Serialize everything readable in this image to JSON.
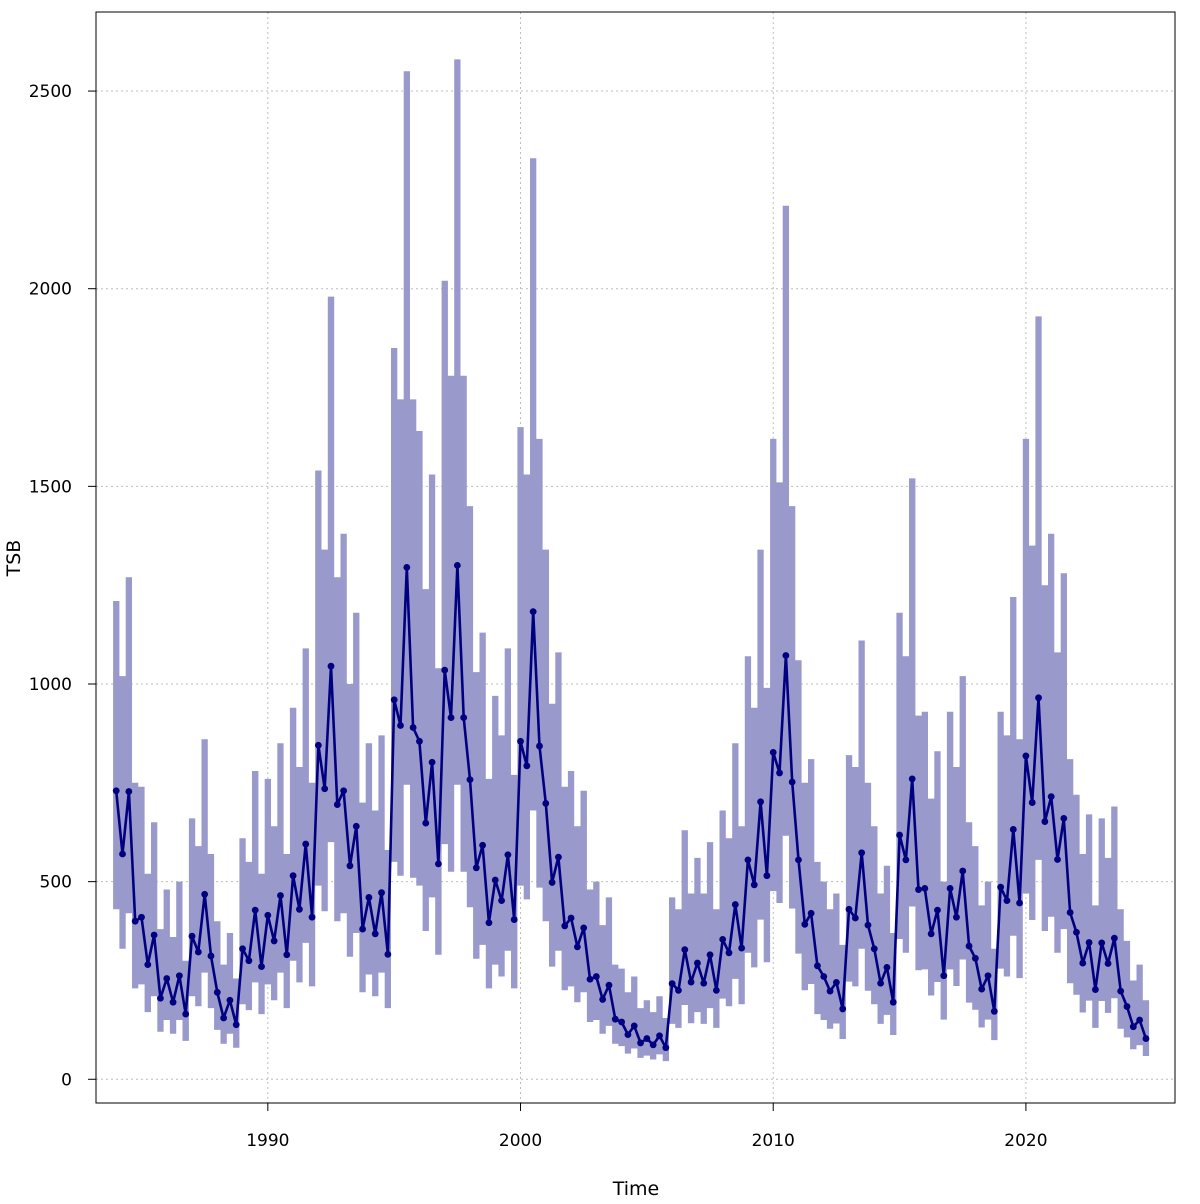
{
  "chart_data": {
    "type": "line",
    "title": "",
    "xlabel": "Time",
    "ylabel": "TSB",
    "xlim": [
      1983.2,
      2025.9
    ],
    "ylim": [
      -60,
      2700
    ],
    "x_ticks": [
      1990,
      2000,
      2010,
      2020
    ],
    "y_ticks": [
      0,
      500,
      1000,
      1500,
      2000,
      2500
    ],
    "grid": true,
    "legend": "none",
    "colors": {
      "line": "#000080",
      "band": "#9999cc",
      "grid": "#bdbdbd",
      "axis": "#000000"
    },
    "series": [
      {
        "x": [
          1984.0,
          1984.25,
          1984.5,
          1984.75,
          1985.0,
          1985.25,
          1985.5,
          1985.75,
          1986.0,
          1986.25,
          1986.5,
          1986.75,
          1987.0,
          1987.25,
          1987.5,
          1987.75,
          1988.0,
          1988.25,
          1988.5,
          1988.75,
          1989.0,
          1989.25,
          1989.5,
          1989.75,
          1990.0,
          1990.25,
          1990.5,
          1990.75,
          1991.0,
          1991.25,
          1991.5,
          1991.75,
          1992.0,
          1992.25,
          1992.5,
          1992.75,
          1993.0,
          1993.25,
          1993.5,
          1993.75,
          1994.0,
          1994.25,
          1994.5,
          1994.75,
          1995.0,
          1995.25,
          1995.5,
          1995.75,
          1996.0,
          1996.25,
          1996.5,
          1996.75,
          1997.0,
          1997.25,
          1997.5,
          1997.75,
          1998.0,
          1998.25,
          1998.5,
          1998.75,
          1999.0,
          1999.25,
          1999.5,
          1999.75,
          2000.0,
          2000.25,
          2000.5,
          2000.75,
          2001.0,
          2001.25,
          2001.5,
          2001.75,
          2002.0,
          2002.25,
          2002.5,
          2002.75,
          2003.0,
          2003.25,
          2003.5,
          2003.75,
          2004.0,
          2004.25,
          2004.5,
          2004.75,
          2005.0,
          2005.25,
          2005.5,
          2005.75,
          2006.0,
          2006.25,
          2006.5,
          2006.75,
          2007.0,
          2007.25,
          2007.5,
          2007.75,
          2008.0,
          2008.25,
          2008.5,
          2008.75,
          2009.0,
          2009.25,
          2009.5,
          2009.75,
          2010.0,
          2010.25,
          2010.5,
          2010.75,
          2011.0,
          2011.25,
          2011.5,
          2011.75,
          2012.0,
          2012.25,
          2012.5,
          2012.75,
          2013.0,
          2013.25,
          2013.5,
          2013.75,
          2014.0,
          2014.25,
          2014.5,
          2014.75,
          2015.0,
          2015.25,
          2015.5,
          2015.75,
          2016.0,
          2016.25,
          2016.5,
          2016.75,
          2017.0,
          2017.25,
          2017.5,
          2017.75,
          2018.0,
          2018.25,
          2018.5,
          2018.75,
          2019.0,
          2019.25,
          2019.5,
          2019.75,
          2020.0,
          2020.25,
          2020.5,
          2020.75,
          2021.0,
          2021.25,
          2021.5,
          2021.75,
          2022.0,
          2022.25,
          2022.5,
          2022.75,
          2023.0,
          2023.25,
          2023.5,
          2023.75,
          2024.0,
          2024.25,
          2024.5,
          2024.75
        ],
        "values": [
          730,
          570,
          728,
          400,
          410,
          290,
          365,
          205,
          255,
          195,
          262,
          165,
          362,
          322,
          468,
          312,
          220,
          155,
          200,
          138,
          330,
          300,
          428,
          285,
          415,
          350,
          465,
          315,
          515,
          430,
          595,
          410,
          845,
          735,
          1045,
          695,
          730,
          540,
          640,
          380,
          460,
          368,
          472,
          316,
          960,
          895,
          1295,
          890,
          855,
          648,
          802,
          545,
          1035,
          915,
          1300,
          915,
          758,
          535,
          592,
          396,
          504,
          452,
          568,
          404,
          855,
          793,
          1183,
          843,
          698,
          498,
          562,
          388,
          408,
          335,
          383,
          253,
          260,
          202,
          238,
          152,
          145,
          113,
          135,
          92,
          103,
          87,
          110,
          80,
          242,
          225,
          328,
          246,
          294,
          243,
          315,
          225,
          354,
          320,
          442,
          332,
          555,
          492,
          702,
          515,
          827,
          775,
          1072,
          752,
          555,
          392,
          420,
          287,
          260,
          223,
          245,
          178,
          430,
          408,
          573,
          390,
          330,
          243,
          283,
          195,
          618,
          555,
          760,
          480,
          483,
          368,
          428,
          262,
          483,
          410,
          527,
          337,
          306,
          228,
          262,
          172,
          486,
          452,
          632,
          446,
          818,
          700,
          965,
          652,
          715,
          556,
          660,
          422,
          372,
          294,
          346,
          227,
          345,
          293,
          357,
          223,
          184,
          133,
          150,
          103
        ]
      }
    ],
    "band": {
      "upper": [
        1210,
        1020,
        1270,
        750,
        740,
        520,
        650,
        380,
        480,
        360,
        500,
        300,
        660,
        590,
        860,
        570,
        400,
        290,
        370,
        255,
        610,
        550,
        780,
        520,
        760,
        640,
        850,
        570,
        940,
        790,
        1090,
        750,
        1540,
        1340,
        1980,
        1270,
        1380,
        1000,
        1180,
        700,
        850,
        680,
        870,
        580,
        1850,
        1720,
        2550,
        1720,
        1640,
        1240,
        1530,
        1040,
        2020,
        1780,
        2580,
        1780,
        1450,
        1030,
        1130,
        760,
        970,
        870,
        1090,
        770,
        1650,
        1530,
        2330,
        1620,
        1340,
        950,
        1080,
        740,
        780,
        640,
        730,
        480,
        500,
        390,
        460,
        290,
        280,
        220,
        260,
        180,
        200,
        170,
        210,
        155,
        460,
        430,
        630,
        470,
        560,
        470,
        600,
        430,
        680,
        610,
        850,
        640,
        1070,
        940,
        1340,
        990,
        1620,
        1510,
        2210,
        1450,
        1060,
        750,
        810,
        550,
        500,
        430,
        470,
        340,
        820,
        790,
        1110,
        750,
        640,
        470,
        540,
        370,
        1180,
        1070,
        1520,
        920,
        930,
        710,
        830,
        500,
        930,
        790,
        1020,
        650,
        590,
        440,
        500,
        330,
        930,
        870,
        1220,
        860,
        1620,
        1350,
        1930,
        1250,
        1380,
        1080,
        1280,
        810,
        720,
        570,
        670,
        440,
        660,
        560,
        690,
        430,
        350,
        250,
        290,
        200
      ],
      "lower": [
        430,
        330,
        420,
        230,
        240,
        170,
        210,
        120,
        150,
        115,
        150,
        97,
        210,
        185,
        270,
        180,
        125,
        90,
        115,
        80,
        190,
        175,
        245,
        165,
        240,
        200,
        270,
        180,
        300,
        245,
        345,
        235,
        490,
        425,
        600,
        400,
        420,
        310,
        370,
        220,
        265,
        210,
        270,
        180,
        550,
        515,
        745,
        510,
        490,
        375,
        460,
        315,
        595,
        525,
        745,
        525,
        435,
        305,
        340,
        230,
        290,
        260,
        325,
        230,
        490,
        455,
        680,
        485,
        400,
        285,
        325,
        225,
        235,
        195,
        220,
        145,
        150,
        115,
        135,
        90,
        84,
        65,
        78,
        54,
        60,
        50,
        63,
        46,
        140,
        130,
        188,
        142,
        170,
        140,
        180,
        130,
        204,
        185,
        254,
        190,
        320,
        283,
        404,
        296,
        476,
        446,
        616,
        432,
        318,
        225,
        241,
        165,
        150,
        128,
        141,
        102,
        247,
        235,
        330,
        224,
        190,
        140,
        163,
        112,
        355,
        320,
        437,
        276,
        278,
        212,
        246,
        151,
        278,
        236,
        303,
        194,
        176,
        131,
        151,
        99,
        280,
        260,
        363,
        256,
        470,
        403,
        555,
        375,
        411,
        320,
        380,
        243,
        214,
        169,
        199,
        130,
        198,
        168,
        205,
        128,
        106,
        76,
        86,
        59
      ]
    }
  }
}
